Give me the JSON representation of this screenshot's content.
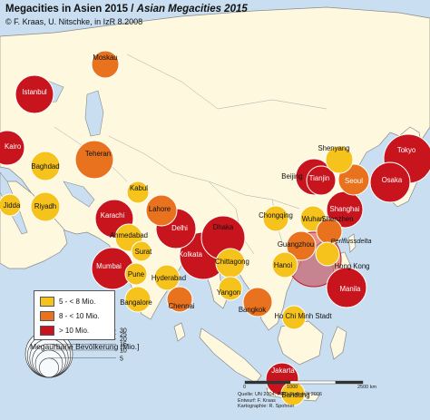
{
  "title": {
    "german": "Megacities in Asien 2015 / ",
    "english": "Asian Megacities 2015",
    "credit": "© F. Kraas, U. Nitschke, in IzR 8.2008"
  },
  "colors": {
    "water": "#c9def0",
    "land": "#fdf8de",
    "class_small": "#f6c21c",
    "class_medium": "#e8721e",
    "class_large": "#c8141d"
  },
  "legend": {
    "classes": [
      {
        "label": "5 - < 8 Mio.",
        "color": "#f6c21c"
      },
      {
        "label": "8 - < 10 Mio.",
        "color": "#e8721e"
      },
      {
        "label": "> 10 Mio.",
        "color": "#c8141d"
      }
    ],
    "size_title": "Megaurbane Bevölkerung [Mio.]",
    "size_values": [
      "30",
      "25",
      "20",
      "15",
      "10",
      "5"
    ]
  },
  "cities": [
    {
      "name": "Moskau",
      "category": "medium"
    },
    {
      "name": "Istanbul",
      "category": "large"
    },
    {
      "name": "Kairo",
      "category": "large"
    },
    {
      "name": "Baghdad",
      "category": "small"
    },
    {
      "name": "Teheran",
      "category": "medium"
    },
    {
      "name": "Jidda",
      "category": "small"
    },
    {
      "name": "Riyadh",
      "category": "small"
    },
    {
      "name": "Kabul",
      "category": "small"
    },
    {
      "name": "Lahore",
      "category": "medium"
    },
    {
      "name": "Karachi",
      "category": "large"
    },
    {
      "name": "Delhi",
      "category": "large"
    },
    {
      "name": "Ahmedabad",
      "category": "small"
    },
    {
      "name": "Surat",
      "category": "small"
    },
    {
      "name": "Mumbai",
      "category": "large"
    },
    {
      "name": "Pune",
      "category": "small"
    },
    {
      "name": "Hyderabad",
      "category": "small"
    },
    {
      "name": "Bangalore",
      "category": "small"
    },
    {
      "name": "Chennai",
      "category": "medium"
    },
    {
      "name": "Kolkata",
      "category": "large"
    },
    {
      "name": "Dhaka",
      "category": "large"
    },
    {
      "name": "Chittagong",
      "category": "small"
    },
    {
      "name": "Yangon",
      "category": "small"
    },
    {
      "name": "Bangkok",
      "category": "medium"
    },
    {
      "name": "Ho Chi Minh Stadt",
      "category": "small"
    },
    {
      "name": "Hanoi",
      "category": "small"
    },
    {
      "name": "Chongqing",
      "category": "small"
    },
    {
      "name": "Wuhan",
      "category": "small"
    },
    {
      "name": "Guangzhou",
      "category": "medium"
    },
    {
      "name": "Shenzhen",
      "category": "medium"
    },
    {
      "name": "Perlflussdelta",
      "category": "large"
    },
    {
      "name": "Hong Kong",
      "category": "small"
    },
    {
      "name": "Shenyang",
      "category": "small"
    },
    {
      "name": "Beijing",
      "category": "large"
    },
    {
      "name": "Tianjin",
      "category": "large"
    },
    {
      "name": "Seoul",
      "category": "medium"
    },
    {
      "name": "Shanghai",
      "category": "large"
    },
    {
      "name": "Tokyo",
      "category": "large"
    },
    {
      "name": "Osaka",
      "category": "large"
    },
    {
      "name": "Manila",
      "category": "large"
    },
    {
      "name": "Jakarta",
      "category": "large"
    },
    {
      "name": "Bandung",
      "category": "small"
    }
  ],
  "scale": {
    "start": "0",
    "mid": "1000",
    "end": "2500 km"
  },
  "sources": [
    "Quelle: UN 2004, PRD-Statistics 2006",
    "Entwurf: F. Kraas",
    "Kartographie: R. Spohner"
  ]
}
